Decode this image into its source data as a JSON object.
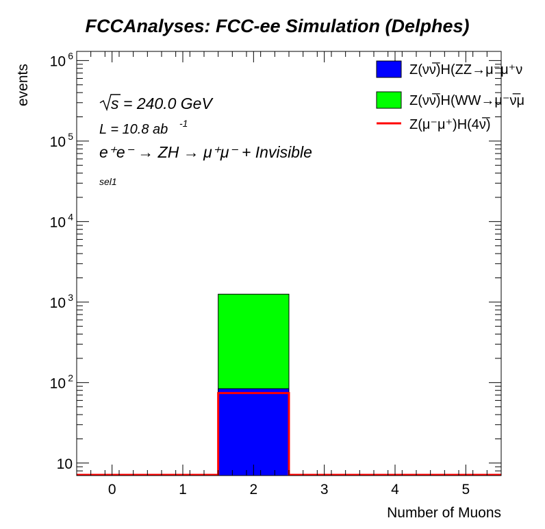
{
  "chart_data": {
    "type": "bar",
    "stacked": true,
    "title": "FCCAnalyses: FCC-ee Simulation (Delphes)",
    "xlabel": "Number of Muons",
    "ylabel": "events",
    "x_bin_edges": [
      -0.5,
      0.5,
      1.5,
      2.5,
      3.5,
      4.5,
      5.5
    ],
    "xlim": [
      -0.5,
      5.5
    ],
    "ylim": [
      7,
      1300000
    ],
    "y_scale": "log",
    "x_ticks": [
      "0",
      "1",
      "2",
      "3",
      "4",
      "5"
    ],
    "y_ticks": [
      {
        "value": 10,
        "base": "10",
        "exp": ""
      },
      {
        "value": 100,
        "base": "10",
        "exp": "2"
      },
      {
        "value": 1000,
        "base": "10",
        "exp": "3"
      },
      {
        "value": 10000,
        "base": "10",
        "exp": "4"
      },
      {
        "value": 100000,
        "base": "10",
        "exp": "5"
      },
      {
        "value": 1000000,
        "base": "10",
        "exp": "6"
      }
    ],
    "series": [
      {
        "name": "Z(νν̅)H(ZZ→μ⁻μ⁺ν",
        "style": "filled-stack",
        "color": "#0000ff",
        "values": [
          0,
          0,
          84,
          0,
          0,
          0
        ]
      },
      {
        "name": "Z(νν̅)H(WW→μ⁻ν̅μ",
        "style": "filled-stack",
        "color": "#00ff00",
        "values": [
          0,
          0,
          1170,
          0,
          0,
          0
        ]
      },
      {
        "name": "Z(μ⁻μ⁺)H(4ν̅)",
        "style": "line",
        "color": "#ff0000",
        "values": [
          0,
          0,
          74,
          0,
          0,
          0
        ]
      }
    ],
    "annotations": {
      "sqrt_s": "= 240.0 GeV",
      "lumi": "L = 10.8 ab",
      "lumi_exp": "-1",
      "process": "e⁺e⁻ → ZH → μ⁺μ⁻ + Invisible",
      "selection": "sel1"
    },
    "legend_position": "top-right",
    "grid": false
  }
}
